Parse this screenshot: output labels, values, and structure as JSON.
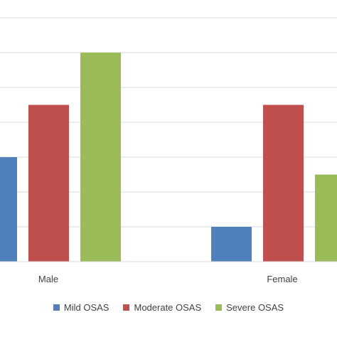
{
  "chart_data": {
    "type": "bar",
    "categories": [
      "Male",
      "Female"
    ],
    "series": [
      {
        "name": "Mild OSAS",
        "values": [
          3,
          1
        ],
        "color": "#4f81bd"
      },
      {
        "name": "Moderate OSAS",
        "values": [
          4.5,
          4.5
        ],
        "color": "#c0504d"
      },
      {
        "name": "Severe OSAS",
        "values": [
          6,
          2.5
        ],
        "color": "#9bbb59"
      }
    ],
    "ylim": [
      0,
      7
    ],
    "grid": true,
    "gridlines": [
      1,
      2,
      3,
      4,
      5,
      6,
      7
    ],
    "legend_position": "bottom"
  }
}
